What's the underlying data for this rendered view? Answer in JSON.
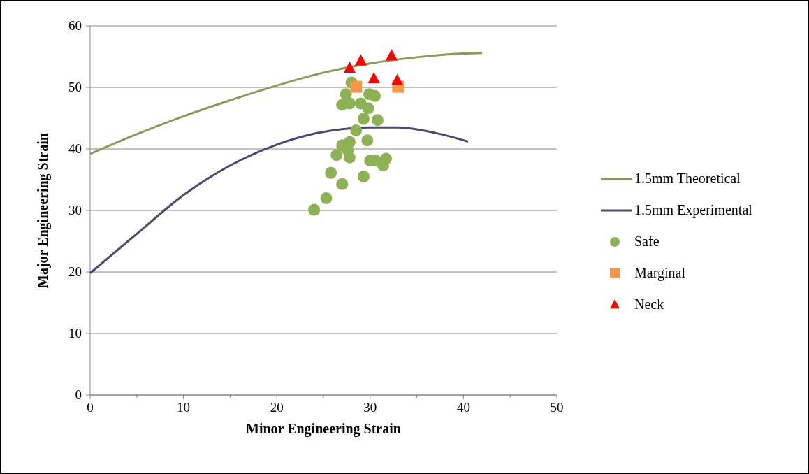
{
  "chart_data": {
    "type": "scatter",
    "xlabel": "Minor Engineering Strain",
    "ylabel": "Major Engineering Strain",
    "xlim": [
      0,
      50
    ],
    "xticks": [
      0,
      10,
      20,
      30,
      40,
      50
    ],
    "ylim": [
      0,
      60
    ],
    "yticks": [
      0,
      10,
      20,
      30,
      40,
      50,
      60
    ],
    "grid": "y",
    "legend": "right",
    "series": [
      {
        "name": "1.5mm Theoretical",
        "type": "line",
        "color": "#8a9a5b",
        "marker": "none",
        "x": [
          0,
          5,
          10,
          15,
          20,
          25,
          30,
          35,
          40,
          42
        ],
        "values": [
          39.2,
          42.4,
          45.3,
          47.9,
          50.3,
          52.4,
          53.9,
          54.9,
          55.5,
          55.6
        ]
      },
      {
        "name": "1.5mm Experimental",
        "type": "line",
        "color": "#4b4a6e",
        "marker": "none",
        "x": [
          0,
          5,
          10,
          15,
          20,
          23.5,
          27,
          30,
          33,
          37,
          40.5
        ],
        "values": [
          19.8,
          26.2,
          32.5,
          37.3,
          40.7,
          42.3,
          43.2,
          43.5,
          43.5,
          42.6,
          41.2
        ]
      },
      {
        "name": "Safe",
        "color": "#8db255",
        "marker": "circle",
        "x": [
          24.0,
          25.3,
          25.8,
          27.0,
          29.3,
          26.4,
          27.0,
          27.6,
          27.8,
          27.8,
          28.5,
          29.7,
          30.0,
          30.6,
          31.4,
          31.7,
          30.8,
          29.3,
          29.8,
          27.0,
          27.8,
          29.0,
          27.4,
          29.9,
          30.5,
          28.0
        ],
        "values": [
          30.1,
          32.0,
          36.1,
          34.3,
          35.5,
          39.0,
          40.6,
          39.8,
          38.6,
          41.1,
          43.0,
          41.4,
          38.1,
          38.1,
          37.3,
          38.4,
          44.7,
          44.9,
          46.6,
          47.2,
          47.4,
          47.4,
          48.9,
          48.9,
          48.6,
          50.8
        ]
      },
      {
        "name": "Marginal",
        "color": "#f79646",
        "marker": "square",
        "x": [
          28.5,
          33.0
        ],
        "values": [
          50.1,
          50.1
        ]
      },
      {
        "name": "Neck",
        "color": "#ff0000",
        "marker": "triangle",
        "x": [
          27.8,
          29.0,
          32.3,
          30.4,
          32.9
        ],
        "values": [
          53.1,
          54.3,
          55.1,
          51.4,
          51.1
        ]
      }
    ]
  }
}
